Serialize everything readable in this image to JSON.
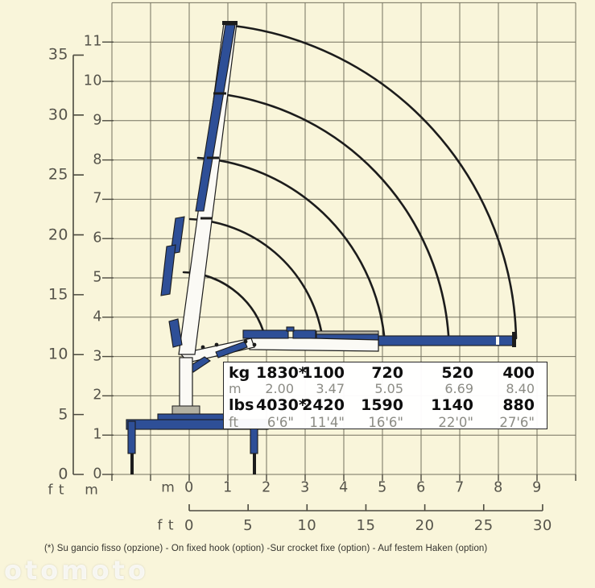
{
  "colors": {
    "background": "#f9f5da",
    "grid_line": "#74715f",
    "axis_ink": "#55534a",
    "axis_bracket": "#4c4a3f",
    "drawing_ink": "#1c1c1c",
    "crane_blue": "#2e4f97",
    "crane_white": "#fbfaf5",
    "table_muted": "#8c8c85"
  },
  "axes": {
    "left_ft": {
      "unit": "f t",
      "ticks": [
        "0",
        "5",
        "10",
        "15",
        "20",
        "25",
        "30",
        "35"
      ]
    },
    "left_m": {
      "unit": "m",
      "ticks": [
        "0",
        "1",
        "2",
        "3",
        "4",
        "5",
        "6",
        "7",
        "8",
        "9",
        "10",
        "11"
      ]
    },
    "bottom_m": {
      "unit": "m",
      "ticks": [
        "0",
        "1",
        "2",
        "3",
        "4",
        "5",
        "6",
        "7",
        "8",
        "9"
      ]
    },
    "bottom_ft": {
      "unit": "f t",
      "ticks": [
        "0",
        "5",
        "10",
        "15",
        "20",
        "25",
        "30"
      ]
    }
  },
  "load_table": {
    "rows": [
      {
        "label": "kg",
        "bold": true,
        "values": [
          "1830*",
          "1100",
          "720",
          "520",
          "400"
        ]
      },
      {
        "label": "m",
        "bold": false,
        "values": [
          "2.00",
          "3.47",
          "5.05",
          "6.69",
          "8.40"
        ]
      },
      {
        "label": "lbs",
        "bold": true,
        "values": [
          "4030*",
          "2420",
          "1590",
          "1140",
          "880"
        ]
      },
      {
        "label": "ft",
        "bold": false,
        "values": [
          "6'6\"",
          "11'4\"",
          "16'6\"",
          "22'0\"",
          "27'6\""
        ]
      }
    ]
  },
  "footnote": "(*) Su gancio fisso (opzione) - On fixed hook (option) -Sur crocket fixe (option) - Auf festem Haken (option)",
  "watermark": "otomoto"
}
